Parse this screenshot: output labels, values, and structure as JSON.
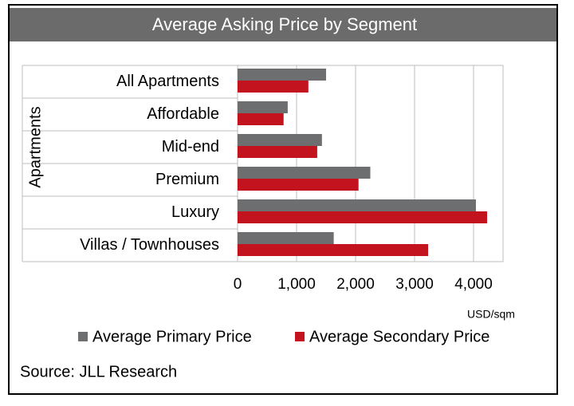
{
  "chart_data": {
    "type": "hbar",
    "title": "Average Asking Price by Segment",
    "categories": [
      "All Apartments",
      "Affordable",
      "Mid-end",
      "Premium",
      "Luxury",
      "Villas / Townhouses"
    ],
    "series": [
      {
        "name": "Average Primary Price",
        "color": "#6d6e70",
        "values": [
          1500,
          850,
          1430,
          2250,
          4040,
          1630
        ]
      },
      {
        "name": "Average Secondary Price",
        "color": "#c3131f",
        "values": [
          1200,
          780,
          1350,
          2050,
          4230,
          3230
        ]
      }
    ],
    "y_label": "Apartments",
    "x_unit": "USD/sqm",
    "xlim": [
      0,
      4500
    ],
    "xticks": [
      0,
      {
        "value": 1000,
        "label": "1,000"
      },
      {
        "value": 2000,
        "label": "2,000"
      },
      {
        "value": 3000,
        "label": "3,000"
      },
      {
        "value": 4000,
        "label": "4,000"
      }
    ],
    "grid": true,
    "legend": "bottom",
    "source": "Source: JLL Research"
  }
}
